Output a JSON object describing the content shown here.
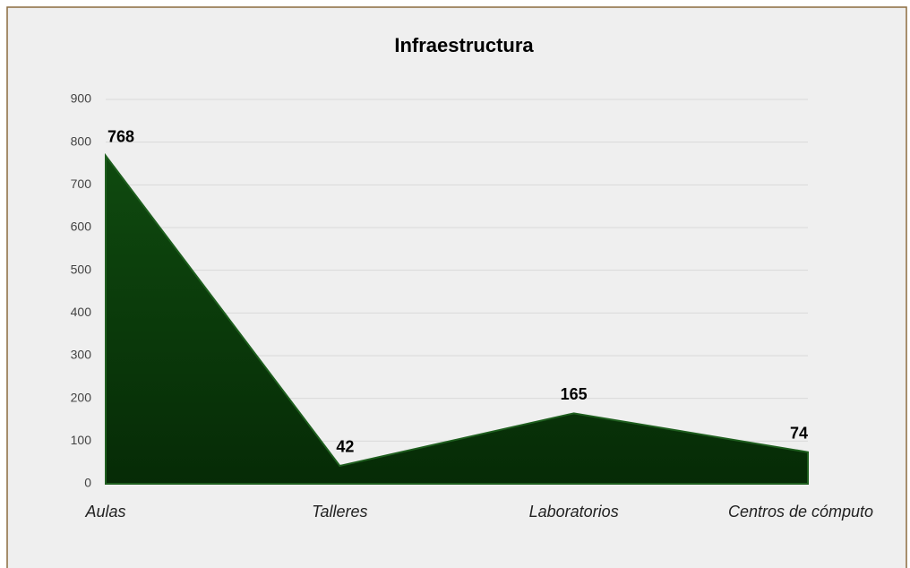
{
  "chart_data": {
    "type": "area",
    "title": "Infraestructura",
    "categories": [
      "Aulas",
      "Talleres",
      "Laboratorios",
      "Centros de cómputo"
    ],
    "values": [
      768,
      42,
      165,
      74
    ],
    "color": "#0b3d0b",
    "ylim": [
      0,
      900
    ],
    "yticks": [
      0,
      100,
      200,
      300,
      400,
      500,
      600,
      700,
      800,
      900
    ],
    "grid": true
  }
}
